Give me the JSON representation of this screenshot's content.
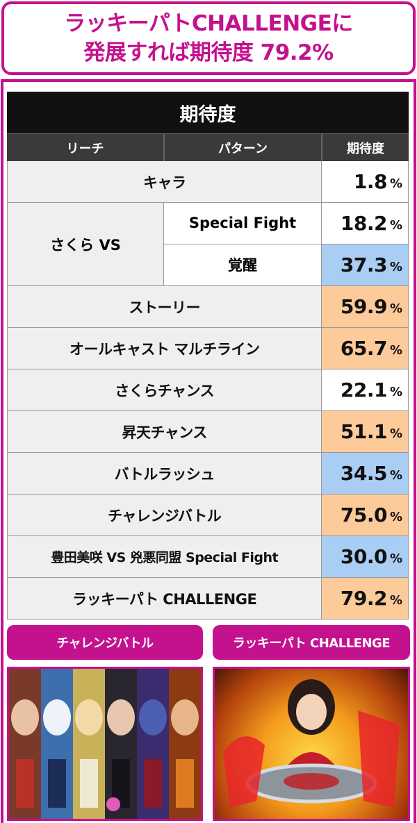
{
  "header": {
    "line1": "ラッキーパトCHALLENGEに",
    "line2": "発展すれば期待度 79.2%"
  },
  "table": {
    "title": "期待度",
    "columns": [
      "リーチ",
      "パターン",
      "期待度"
    ],
    "percent_sign": "%",
    "rows": [
      {
        "name": "キャラ",
        "value": "1.8",
        "color": "white"
      },
      {
        "name": "ストーリー",
        "value": "59.9",
        "color": "orange"
      },
      {
        "name": "オールキャスト マルチライン",
        "value": "65.7",
        "color": "orange"
      },
      {
        "name": "さくらチャンス",
        "value": "22.1",
        "color": "white"
      },
      {
        "name": "昇天チャンス",
        "value": "51.1",
        "color": "orange"
      },
      {
        "name": "バトルラッシュ",
        "value": "34.5",
        "color": "blue"
      },
      {
        "name": "チャレンジバトル",
        "value": "75.0",
        "color": "orange"
      },
      {
        "name": "豊田美咲 VS 兇悪同盟 Special Fight",
        "value": "30.0",
        "color": "blue"
      },
      {
        "name": "ラッキーパト CHALLENGE",
        "value": "79.2",
        "color": "orange"
      }
    ],
    "group": {
      "name": "さくら VS",
      "patterns": [
        {
          "name": "Special Fight",
          "value": "18.2",
          "color": "white"
        },
        {
          "name": "覚醒",
          "value": "37.3",
          "color": "blue"
        }
      ]
    }
  },
  "captions": {
    "left": "チャレンジバトル",
    "right": "ラッキーパト CHALLENGE"
  },
  "colors": {
    "accent": "#c4118e",
    "blue_cell": "#a9cdf3",
    "orange_cell": "#fdca9a"
  }
}
